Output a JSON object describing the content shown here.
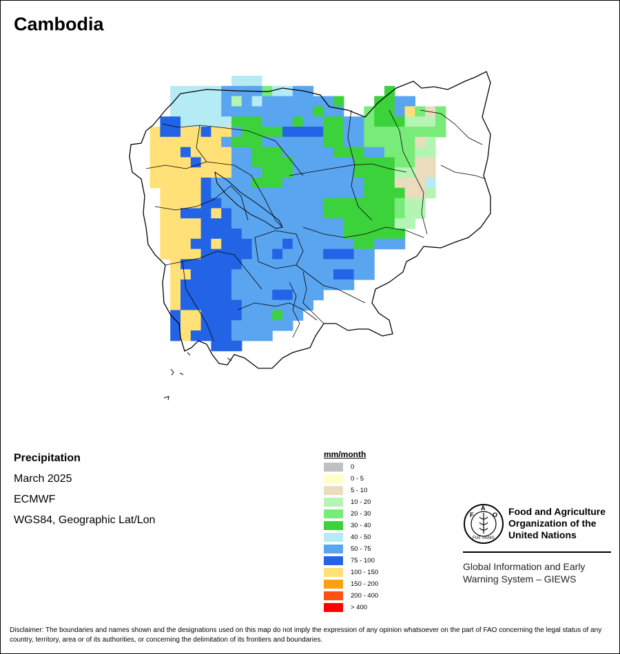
{
  "title": "Cambodia",
  "info": {
    "variable": "Precipitation",
    "period": "March 2025",
    "source": "ECMWF",
    "projection": "WGS84, Geographic Lat/Lon"
  },
  "legend": {
    "title": "mm/month",
    "classes": [
      {
        "label": "0",
        "color": "#c0c0c0"
      },
      {
        "label": "0 - 5",
        "color": "#ffffc8"
      },
      {
        "label": "5 - 10",
        "color": "#ecdcbe"
      },
      {
        "label": "10 - 20",
        "color": "#b4f5b4"
      },
      {
        "label": "20 - 30",
        "color": "#78eb78"
      },
      {
        "label": "30 - 40",
        "color": "#3cd23c"
      },
      {
        "label": "40 - 50",
        "color": "#b4ebf5"
      },
      {
        "label": "50 - 75",
        "color": "#5aa5f0"
      },
      {
        "label": "75 - 100",
        "color": "#2364e6"
      },
      {
        "label": "100 - 150",
        "color": "#ffe178"
      },
      {
        "label": "150 - 200",
        "color": "#ffa014"
      },
      {
        "label": "200 - 400",
        "color": "#ff5014"
      },
      {
        "label": "> 400",
        "color": "#ff0000"
      }
    ]
  },
  "map_grid": {
    "col0_lon": 102.3,
    "row0_lat": 14.7,
    "cell_deg": 0.125,
    "rows": [
      "..........1110000..................",
      "....11111666641166.......5.........",
      "....11111636166666665...5566.......",
      "....11111666666666566..45568424....",
      "...7711111555666566556645553334....",
      "..87788799655557777556644444444....",
      "..9889999655566666655664444423.....",
      "..9997899966555666665556644433.....",
      "..9998799966555566666655554422.....",
      "..9998889966655566666655553322.....",
      "..9998876666555666666665552221.....",
      "...998876666666666666665555223.....",
      "...99887766666666665555555433......",
      "...88777876666666665555555433......",
      "...8888777666666666665555533.......",
      "...888877776666666666555555........",
      "...888778777666766666655666........",
      "...988877777667666677766...........",
      "....87777776666666666666...........",
      "....88777766666666667766...........",
      "....877777666666666666.............",
      "....877777666677666................",
      "....87777776666666.................",
      "....7887777666566..................",
      "....788777666666...................",
      "....7877776666.....................",
      "........777........................"
    ],
    "value_classes": {
      "0": "#ffffff",
      "1": "#b4ebf5",
      "2": "#ecdcbe",
      "3": "#b4f5b4",
      "4": "#78eb78",
      "5": "#3cd23c",
      "6": "#5aa5f0",
      "7": "#2364e6",
      "8": "#ffe178",
      "9": "#ffe178"
    }
  },
  "fao": {
    "name_line1": "Food and Agriculture",
    "name_line2": "Organization of the",
    "name_line3": "United Nations",
    "giews_line1": "Global Information and Early",
    "giews_line2": "Warning System – GIEWS",
    "logo_text": "FAO",
    "motto": "FIAT PANIS"
  },
  "disclaimer": "Disclaimer: The boundaries and names shown and the designations used on this map do not imply the expression of any opinion whatsoever on the part of FAO concerning the legal status of any country, territory, area or of its authorities, or concerning the delimitation of its frontiers and boundaries."
}
